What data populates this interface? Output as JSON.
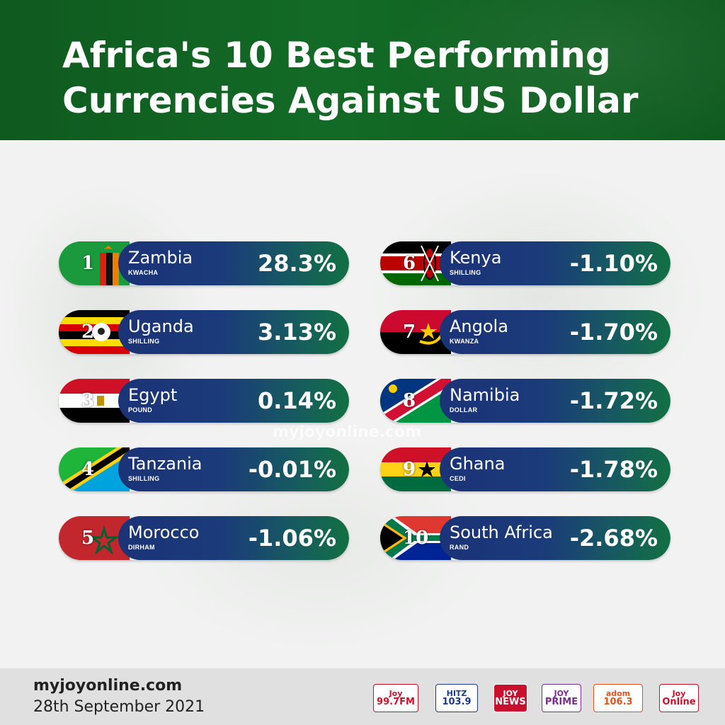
{
  "header": {
    "title_line1": "Africa's 10 Best Performing",
    "title_line2": "Currencies Against US Dollar"
  },
  "watermark": "myjoyonline.com",
  "chart_data": {
    "type": "table",
    "title": "Africa's 10 Best Performing Currencies Against US Dollar",
    "unit": "%",
    "rows": [
      {
        "rank": "1",
        "country": "Zambia",
        "currency": "KWACHA",
        "value": 28.3,
        "label": "28.3%"
      },
      {
        "rank": "2",
        "country": "Uganda",
        "currency": "SHILLING",
        "value": 3.13,
        "label": "3.13%"
      },
      {
        "rank": "3",
        "country": "Egypt",
        "currency": "POUND",
        "value": 0.14,
        "label": "0.14%"
      },
      {
        "rank": "4",
        "country": "Tanzania",
        "currency": "SHILLING",
        "value": -0.01,
        "label": "-0.01%"
      },
      {
        "rank": "5",
        "country": "Morocco",
        "currency": "DIRHAM",
        "value": -1.06,
        "label": "-1.06%"
      },
      {
        "rank": "6",
        "country": "Kenya",
        "currency": "SHILLING",
        "value": -1.1,
        "label": "-1.10%"
      },
      {
        "rank": "7",
        "country": "Angola",
        "currency": "KWANZA",
        "value": -1.7,
        "label": "-1.70%"
      },
      {
        "rank": "8",
        "country": "Namibia",
        "currency": "DOLLAR",
        "value": -1.72,
        "label": "-1.72%"
      },
      {
        "rank": "9",
        "country": "Ghana",
        "currency": "CEDI",
        "value": -1.78,
        "label": "-1.78%"
      },
      {
        "rank": "10",
        "country": "South Africa",
        "currency": "RAND",
        "value": -2.68,
        "label": "-2.68%"
      }
    ]
  },
  "flags": [
    "zambia-flag-icon",
    "uganda-flag-icon",
    "egypt-flag-icon",
    "tanzania-flag-icon",
    "morocco-flag-icon",
    "kenya-flag-icon",
    "angola-flag-icon",
    "namibia-flag-icon",
    "ghana-flag-icon",
    "south-africa-flag-icon"
  ],
  "colors": {
    "header_green": "#136a26",
    "bar_blue": "#1b3377",
    "bar_green": "#127042",
    "background": "#f1f2f1"
  },
  "footer": {
    "site": "myjoyonline.com",
    "date": "28th September 2021",
    "logos": [
      {
        "name": "joy-fm-logo",
        "line1": "Joy",
        "line2": "99.7FM",
        "bg": "#ffffff",
        "fg": "#d0102a"
      },
      {
        "name": "hitz-fm-logo",
        "line1": "HITZ",
        "line2": "103.9",
        "bg": "#ffffff",
        "fg": "#1b3a8c"
      },
      {
        "name": "joy-news-logo",
        "line1": "JOY",
        "line2": "NEWS",
        "bg": "#c8102e",
        "fg": "#ffffff"
      },
      {
        "name": "joy-prime-logo",
        "line1": "JOY",
        "line2": "PRIME",
        "bg": "#ffffff",
        "fg": "#7b2d8e"
      },
      {
        "name": "adom-fm-logo",
        "line1": "adom",
        "line2": "106.3",
        "bg": "#ffffff",
        "fg": "#e8501a"
      },
      {
        "name": "joy-online-logo",
        "line1": "Joy",
        "line2": "Online",
        "bg": "#ffffff",
        "fg": "#d0102a"
      }
    ]
  }
}
